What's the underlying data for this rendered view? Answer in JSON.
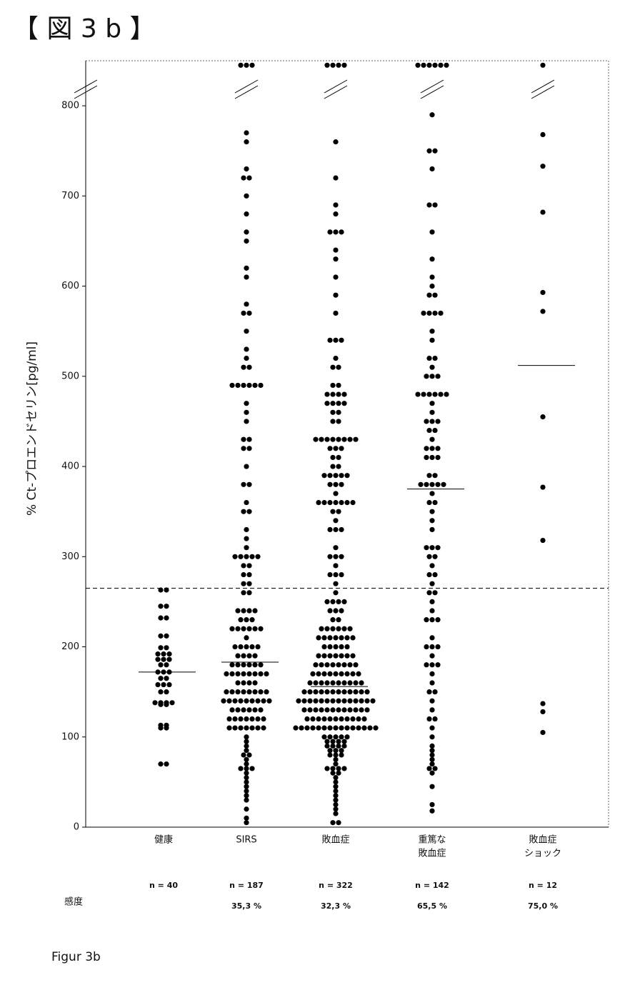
{
  "chart_data": {
    "type": "strip",
    "title": "【 図 3 b 】",
    "y_label": "% Ct-プロエンドセリン[pg/ml]",
    "footer": "Figur 3b",
    "sensitivity_label": "感度",
    "ylim": [
      0,
      850
    ],
    "yticks": [
      0,
      100,
      200,
      300,
      400,
      500,
      600,
      700,
      800
    ],
    "threshold": 265,
    "color": "#000000",
    "groups": [
      {
        "label": [
          "健康"
        ],
        "n": "n = 40",
        "median": 172,
        "values": [
          263,
          263,
          245,
          245,
          232,
          232,
          212,
          212,
          199,
          199,
          192,
          192,
          192,
          186,
          186,
          186,
          180,
          180,
          172,
          172,
          172,
          165,
          165,
          158,
          158,
          158,
          150,
          150,
          138,
          138,
          138,
          138,
          136,
          136,
          113,
          113,
          110,
          110,
          70,
          70
        ]
      },
      {
        "label": [
          "SIRS"
        ],
        "n": "n = 187",
        "sensitivity": "35,3 %",
        "median": 183,
        "values": [
          845,
          845,
          845,
          770,
          760,
          730,
          720,
          720,
          700,
          680,
          660,
          650,
          620,
          610,
          580,
          570,
          570,
          550,
          530,
          520,
          510,
          510,
          490,
          490,
          490,
          490,
          490,
          490,
          470,
          460,
          450,
          430,
          430,
          420,
          420,
          400,
          380,
          380,
          360,
          350,
          350,
          330,
          320,
          310,
          300,
          300,
          300,
          300,
          300,
          290,
          290,
          280,
          280,
          270,
          270,
          260,
          260,
          240,
          240,
          240,
          240,
          230,
          230,
          230,
          220,
          220,
          220,
          220,
          220,
          220,
          210,
          200,
          200,
          200,
          200,
          200,
          190,
          190,
          190,
          190,
          180,
          180,
          180,
          180,
          180,
          180,
          170,
          170,
          170,
          170,
          170,
          170,
          170,
          170,
          160,
          160,
          160,
          160,
          150,
          150,
          150,
          150,
          150,
          150,
          150,
          150,
          140,
          140,
          140,
          140,
          140,
          140,
          140,
          140,
          140,
          130,
          130,
          130,
          130,
          130,
          130,
          120,
          120,
          120,
          120,
          120,
          120,
          120,
          110,
          110,
          110,
          110,
          110,
          110,
          110,
          100,
          95,
          90,
          85,
          80,
          80,
          75,
          70,
          65,
          65,
          65,
          60,
          55,
          50,
          45,
          40,
          35,
          30,
          20,
          10,
          5
        ]
      },
      {
        "label": [
          "敗血症"
        ],
        "n": "n = 322",
        "sensitivity": "32,3 %",
        "median": 156,
        "values": [
          845,
          845,
          845,
          845,
          760,
          720,
          690,
          680,
          660,
          660,
          660,
          640,
          630,
          610,
          590,
          570,
          540,
          540,
          540,
          520,
          510,
          510,
          490,
          490,
          480,
          480,
          480,
          480,
          470,
          470,
          470,
          470,
          460,
          460,
          450,
          450,
          430,
          430,
          430,
          430,
          430,
          430,
          430,
          430,
          420,
          420,
          420,
          410,
          410,
          400,
          400,
          390,
          390,
          390,
          390,
          390,
          380,
          380,
          380,
          370,
          360,
          360,
          360,
          360,
          360,
          360,
          360,
          350,
          350,
          340,
          330,
          330,
          330,
          310,
          300,
          300,
          300,
          290,
          280,
          280,
          280,
          270,
          260,
          250,
          250,
          250,
          250,
          240,
          240,
          240,
          230,
          230,
          220,
          220,
          220,
          220,
          220,
          220,
          210,
          210,
          210,
          210,
          210,
          210,
          210,
          200,
          200,
          200,
          200,
          200,
          190,
          190,
          190,
          190,
          190,
          190,
          190,
          180,
          180,
          180,
          180,
          180,
          180,
          180,
          180,
          170,
          170,
          170,
          170,
          170,
          170,
          170,
          170,
          170,
          160,
          160,
          160,
          160,
          160,
          160,
          160,
          160,
          160,
          160,
          150,
          150,
          150,
          150,
          150,
          150,
          150,
          150,
          150,
          150,
          150,
          150,
          140,
          140,
          140,
          140,
          140,
          140,
          140,
          140,
          140,
          140,
          140,
          140,
          140,
          140,
          130,
          130,
          130,
          130,
          130,
          130,
          130,
          130,
          130,
          130,
          130,
          130,
          120,
          120,
          120,
          120,
          120,
          120,
          120,
          120,
          120,
          120,
          120,
          110,
          110,
          110,
          110,
          110,
          110,
          110,
          110,
          110,
          110,
          110,
          110,
          110,
          110,
          110,
          100,
          100,
          100,
          100,
          100,
          95,
          95,
          95,
          95,
          90,
          90,
          90,
          90,
          85,
          85,
          85,
          80,
          80,
          80,
          75,
          70,
          65,
          65,
          65,
          65,
          60,
          60,
          55,
          50,
          45,
          40,
          35,
          30,
          25,
          20,
          15,
          5,
          5
        ]
      },
      {
        "label": [
          "重篤な",
          "敗血症"
        ],
        "n": "n = 142",
        "sensitivity": "65,5 %",
        "median": 375,
        "values": [
          845,
          845,
          845,
          845,
          845,
          845,
          790,
          750,
          750,
          730,
          690,
          690,
          660,
          630,
          610,
          600,
          590,
          590,
          570,
          570,
          570,
          570,
          550,
          540,
          520,
          520,
          510,
          500,
          500,
          500,
          480,
          480,
          480,
          480,
          480,
          480,
          470,
          460,
          450,
          450,
          450,
          440,
          440,
          430,
          420,
          420,
          420,
          410,
          410,
          410,
          390,
          390,
          380,
          380,
          380,
          380,
          380,
          370,
          360,
          360,
          350,
          340,
          330,
          310,
          310,
          310,
          300,
          300,
          290,
          280,
          280,
          270,
          260,
          260,
          250,
          240,
          230,
          230,
          230,
          210,
          200,
          200,
          200,
          190,
          180,
          180,
          180,
          170,
          160,
          150,
          150,
          140,
          130,
          120,
          120,
          110,
          100,
          90,
          85,
          80,
          75,
          70,
          65,
          65,
          60,
          45,
          25,
          18
        ]
      },
      {
        "label": [
          "敗血症",
          "ショック"
        ],
        "n": "n = 12",
        "sensitivity": "75,0 %",
        "median": 512,
        "values": [
          845,
          768,
          733,
          682,
          593,
          572,
          455,
          377,
          318,
          137,
          128,
          105
        ]
      }
    ]
  }
}
